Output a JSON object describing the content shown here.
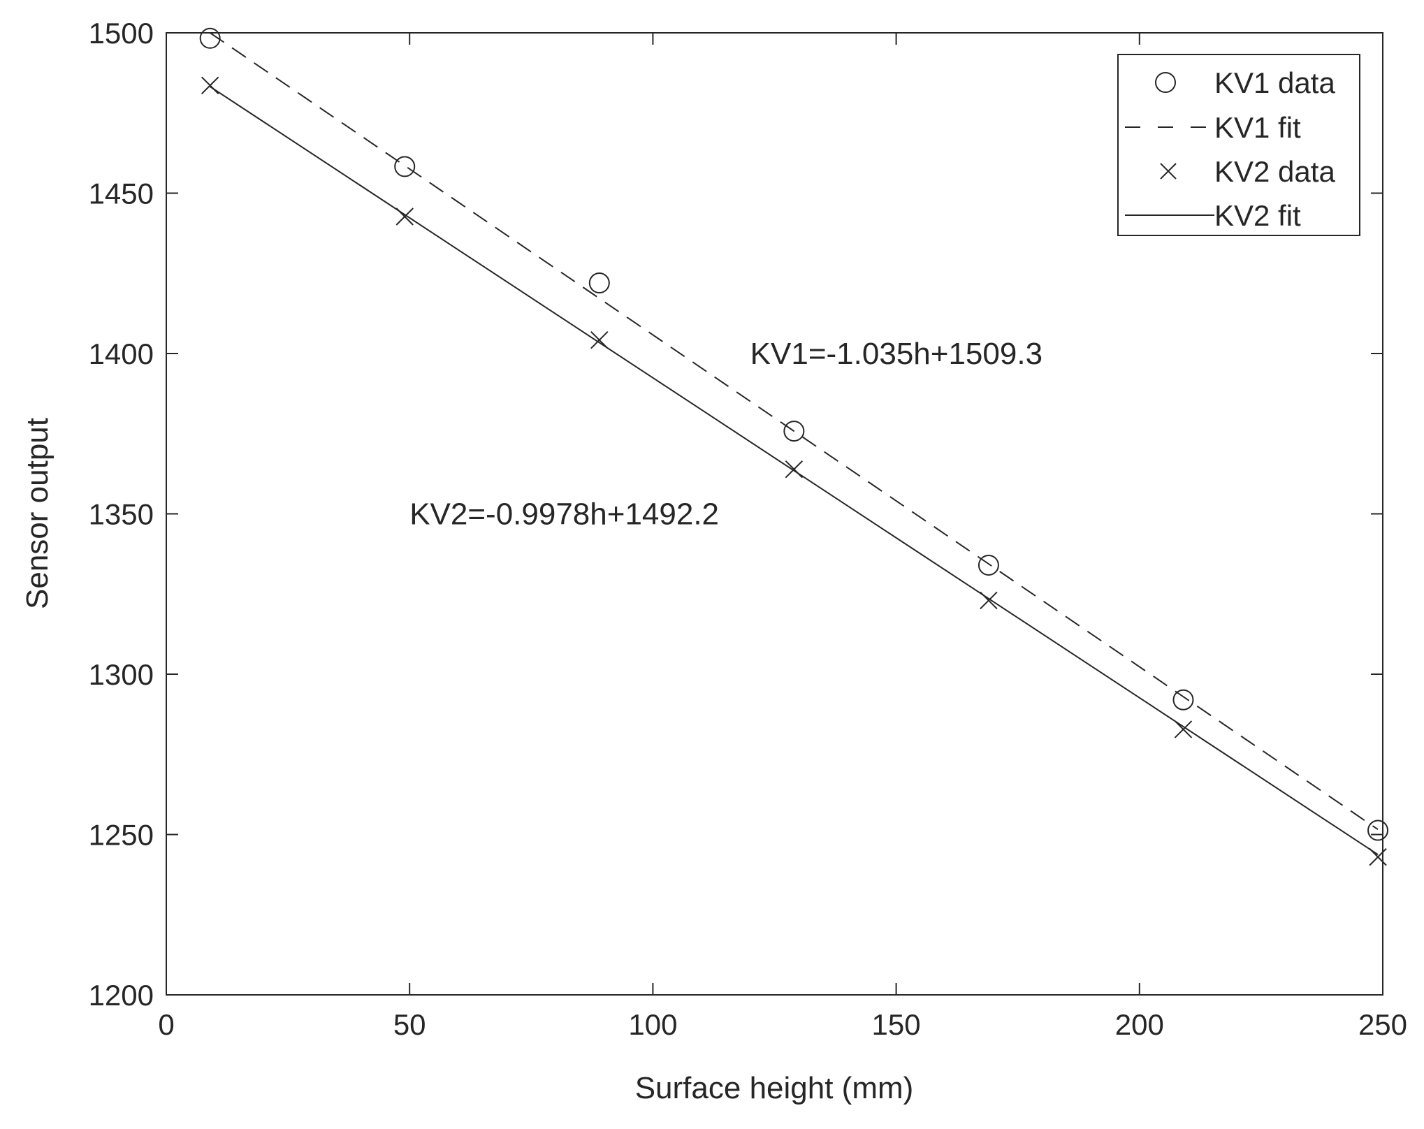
{
  "chart_data": {
    "type": "scatter",
    "title": "",
    "xlabel": "Surface height (mm)",
    "ylabel": "Sensor output",
    "xlim": [
      0,
      250
    ],
    "ylim": [
      1200,
      1500
    ],
    "xticks": [
      0,
      50,
      100,
      150,
      200,
      250
    ],
    "yticks": [
      1200,
      1250,
      1300,
      1350,
      1400,
      1450,
      1500
    ],
    "grid": false,
    "legend_position": "top-right",
    "series": [
      {
        "name": "KV1 data",
        "kind": "marker-circle",
        "x": [
          9,
          49,
          89,
          129,
          169,
          209,
          249
        ],
        "y": [
          1498.3,
          1458.3,
          1422,
          1375.8,
          1334,
          1292,
          1251.3
        ]
      },
      {
        "name": "KV1 fit",
        "kind": "dashed-line",
        "slope": -1.035,
        "intercept": 1509.3,
        "x": [
          9,
          249
        ]
      },
      {
        "name": "KV2 data",
        "kind": "marker-x",
        "x": [
          9,
          49,
          89,
          129,
          169,
          209,
          249
        ],
        "y": [
          1483.6,
          1442.7,
          1404.2,
          1363.9,
          1323,
          1282.8,
          1243
        ]
      },
      {
        "name": "KV2 fit",
        "kind": "solid-line",
        "slope": -0.9978,
        "intercept": 1492.2,
        "x": [
          9,
          249
        ]
      }
    ],
    "annotations": [
      {
        "text": "KV1=-1.035h+1509.3",
        "x": 120,
        "y": 1400
      },
      {
        "text": "KV2=-0.9978h+1492.2",
        "x": 50,
        "y": 1350
      }
    ]
  }
}
